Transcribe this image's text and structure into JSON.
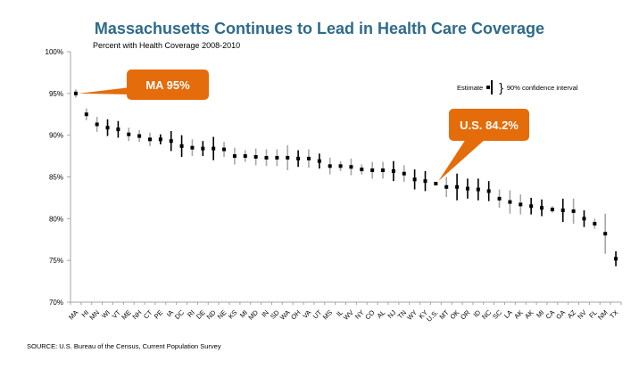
{
  "header": {
    "title": "Massachusetts Continues to Lead in Health Care Coverage",
    "subtitle": "Percent with Health Coverage 2008-2010"
  },
  "legend": {
    "estimate_label": "Estimate",
    "interval_label": "90% confidence  interval"
  },
  "callouts": {
    "ma": "MA 95%",
    "us": "U.S. 84.2%"
  },
  "footer": {
    "source": "SOURCE:   U.S. Bureau of the Census, Current Population Survey"
  },
  "colors": {
    "title": "#2E6B8A",
    "callout": "#E46C0A",
    "ci_dark": "#000000",
    "ci_light": "#A6A6A6"
  },
  "chart_data": {
    "type": "scatter",
    "title": "Massachusetts Continues to Lead in Health Care Coverage",
    "subtitle": "Percent with Health Coverage 2008-2010",
    "xlabel": "",
    "ylabel": "",
    "ylim": [
      70,
      100
    ],
    "yticks": [
      "70%",
      "75%",
      "80%",
      "85%",
      "90%",
      "95%",
      "100%"
    ],
    "ytick_values": [
      70,
      75,
      80,
      85,
      90,
      95,
      100
    ],
    "grid": false,
    "legend": "top-right",
    "categories": [
      "MA",
      "HI",
      "MN",
      "WI",
      "VT",
      "ME",
      "NH",
      "CT",
      "PE",
      "IA",
      "DC",
      "RI",
      "DE",
      "ND",
      "NE",
      "KS",
      "MI",
      "MD",
      "IN",
      "SD",
      "WA",
      "OH",
      "VA",
      "UT",
      "MS",
      "IL",
      "WV",
      "NY",
      "CO",
      "AL",
      "NJ",
      "TN",
      "WY",
      "KY",
      "U.S.",
      "MT",
      "OK",
      "OR",
      "ID",
      "NC",
      "SC",
      "LA",
      "AK",
      "AK",
      "MI",
      "CA",
      "GA",
      "AZ",
      "NV",
      "FL",
      "NM",
      "TX"
    ],
    "series": [
      {
        "name": "Estimate",
        "values": [
          95.0,
          92.5,
          91.3,
          90.9,
          90.7,
          90.1,
          89.9,
          89.5,
          89.5,
          89.3,
          88.7,
          88.5,
          88.4,
          88.4,
          88.3,
          87.5,
          87.5,
          87.4,
          87.3,
          87.3,
          87.3,
          87.2,
          87.2,
          86.9,
          86.3,
          86.3,
          86.2,
          85.9,
          85.8,
          85.8,
          85.7,
          85.4,
          84.7,
          84.5,
          84.2,
          83.8,
          83.8,
          83.6,
          83.5,
          83.3,
          82.4,
          82.0,
          81.7,
          81.5,
          81.3,
          81.1,
          81.0,
          80.9,
          80.0,
          79.4,
          78.2,
          75.2
        ]
      },
      {
        "name": "90% confidence interval (+/-)",
        "values": [
          0.5,
          0.7,
          0.9,
          1.0,
          1.0,
          0.8,
          0.7,
          0.8,
          0.6,
          1.2,
          1.3,
          1.0,
          0.9,
          1.4,
          0.9,
          1.0,
          0.7,
          1.0,
          1.0,
          1.0,
          1.5,
          1.0,
          1.1,
          0.9,
          1.0,
          0.6,
          1.0,
          0.6,
          1.0,
          1.0,
          1.2,
          1.0,
          1.2,
          1.2,
          0.2,
          1.2,
          1.6,
          1.2,
          1.3,
          1.2,
          1.1,
          1.4,
          1.2,
          1.0,
          1.0,
          0.4,
          1.4,
          1.5,
          1.0,
          0.6,
          2.4,
          0.9
        ]
      }
    ],
    "ci_color_pattern": [
      "light",
      "light",
      "light",
      "dark",
      "dark",
      "light",
      "light",
      "light",
      "dark",
      "dark",
      "dark",
      "light",
      "dark",
      "dark",
      "light",
      "light",
      "light",
      "light",
      "light",
      "light",
      "light",
      "dark",
      "light",
      "dark",
      "light",
      "light",
      "light",
      "light",
      "light",
      "light",
      "dark",
      "light",
      "dark",
      "dark",
      "light",
      "light",
      "dark",
      "dark",
      "dark",
      "dark",
      "light",
      "light",
      "light",
      "dark",
      "dark",
      "light",
      "dark",
      "light",
      "dark",
      "light",
      "light",
      "dark"
    ],
    "annotations": [
      {
        "text": "MA 95%",
        "category": "MA",
        "value": 95.0
      },
      {
        "text": "U.S. 84.2%",
        "category": "U.S.",
        "value": 84.2
      }
    ]
  }
}
